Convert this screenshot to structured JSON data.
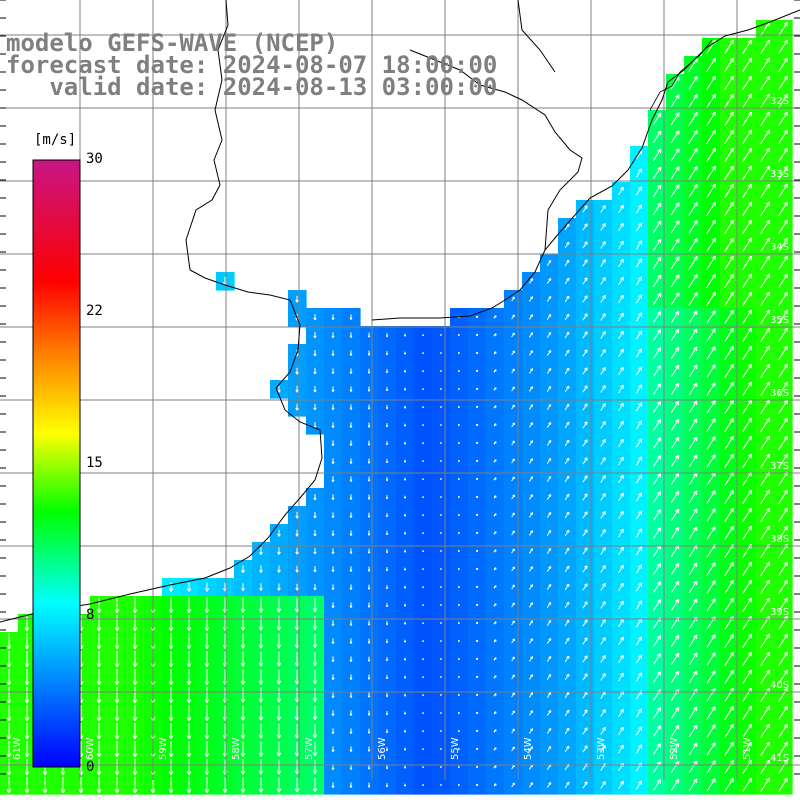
{
  "title": {
    "line1": "modelo GEFS-WAVE (NCEP)",
    "line2": "forecast date: 2024-08-07 18:00:00",
    "line3": "   valid date: 2024-08-13 03:00:00"
  },
  "colorbar": {
    "unit": "[m/s]",
    "ticks": [
      {
        "label": "30",
        "value": 30
      },
      {
        "label": "22",
        "value": 22
      },
      {
        "label": "15",
        "value": 15
      },
      {
        "label": "8",
        "value": 8
      },
      {
        "label": "0",
        "value": 0
      }
    ],
    "stops": [
      "#0000ff",
      "#00ffff",
      "#00ff00",
      "#ffff00",
      "#ff8000",
      "#ff0000",
      "#c71585"
    ]
  },
  "grid": {
    "lat_labels": [
      "32S",
      "33S",
      "34S",
      "35S",
      "36S",
      "37S",
      "38S",
      "39S",
      "40S",
      "41S"
    ],
    "lon_labels": [
      "61W",
      "60W",
      "59W",
      "58W",
      "57W",
      "56W",
      "55W",
      "54W",
      "53W",
      "52W",
      "51W"
    ]
  },
  "colors": {
    "land": "#ffffff",
    "coast": "#000000",
    "grid": "#7f7f7f",
    "title": "#7f7f7f",
    "arrow": "#ffffff"
  }
}
